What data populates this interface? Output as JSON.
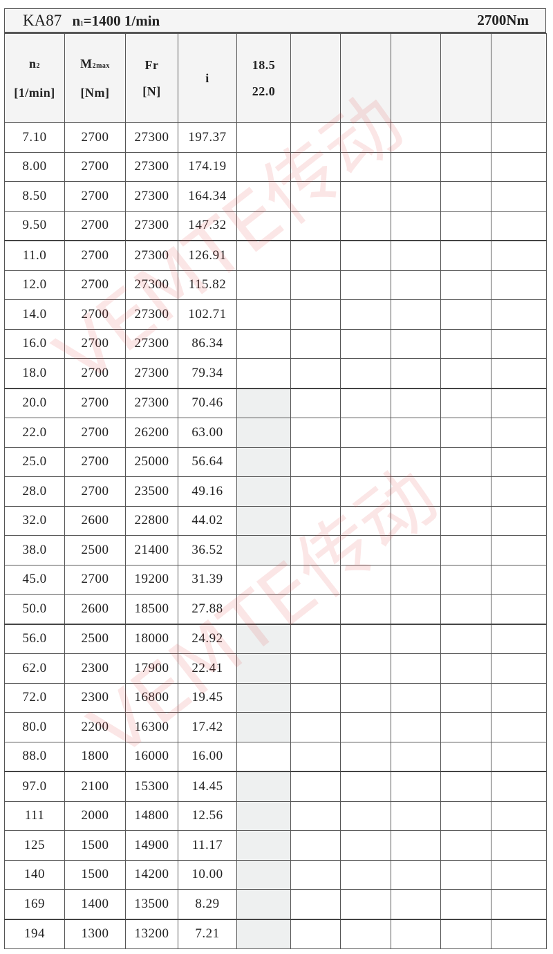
{
  "title": {
    "model": "KA87",
    "n1_label": "n",
    "n1_sub": "1",
    "n1_value": "=1400 1/min",
    "torque": "2700Nm"
  },
  "headers": {
    "n2": {
      "main": "n",
      "sub": "2",
      "unit": "[1/min]"
    },
    "m2max": {
      "main": "M",
      "sub": "2max",
      "unit": "[Nm]"
    },
    "fr": {
      "main": "Fr",
      "unit": "[N]"
    },
    "i": {
      "main": "i"
    },
    "power": {
      "line1": "18.5",
      "line2": "22.0"
    }
  },
  "rows": [
    {
      "n2": "7.10",
      "m2max": "2700",
      "fr": "27300",
      "i": "197.37",
      "shaded": false
    },
    {
      "n2": "8.00",
      "m2max": "2700",
      "fr": "27300",
      "i": "174.19",
      "shaded": false
    },
    {
      "n2": "8.50",
      "m2max": "2700",
      "fr": "27300",
      "i": "164.34",
      "shaded": false
    },
    {
      "n2": "9.50",
      "m2max": "2700",
      "fr": "27300",
      "i": "147.32",
      "shaded": false
    },
    {
      "n2": "11.0",
      "m2max": "2700",
      "fr": "27300",
      "i": "126.91",
      "shaded": false
    },
    {
      "n2": "12.0",
      "m2max": "2700",
      "fr": "27300",
      "i": "115.82",
      "shaded": false
    },
    {
      "n2": "14.0",
      "m2max": "2700",
      "fr": "27300",
      "i": "102.71",
      "shaded": false
    },
    {
      "n2": "16.0",
      "m2max": "2700",
      "fr": "27300",
      "i": "86.34",
      "shaded": false
    },
    {
      "n2": "18.0",
      "m2max": "2700",
      "fr": "27300",
      "i": "79.34",
      "shaded": false
    },
    {
      "n2": "20.0",
      "m2max": "2700",
      "fr": "27300",
      "i": "70.46",
      "shaded": true
    },
    {
      "n2": "22.0",
      "m2max": "2700",
      "fr": "26200",
      "i": "63.00",
      "shaded": true
    },
    {
      "n2": "25.0",
      "m2max": "2700",
      "fr": "25000",
      "i": "56.64",
      "shaded": true
    },
    {
      "n2": "28.0",
      "m2max": "2700",
      "fr": "23500",
      "i": "49.16",
      "shaded": true
    },
    {
      "n2": "32.0",
      "m2max": "2600",
      "fr": "22800",
      "i": "44.02",
      "shaded": true
    },
    {
      "n2": "38.0",
      "m2max": "2500",
      "fr": "21400",
      "i": "36.52",
      "shaded": true
    },
    {
      "n2": "45.0",
      "m2max": "2700",
      "fr": "19200",
      "i": "31.39",
      "shaded": false
    },
    {
      "n2": "50.0",
      "m2max": "2600",
      "fr": "18500",
      "i": "27.88",
      "shaded": false
    },
    {
      "n2": "56.0",
      "m2max": "2500",
      "fr": "18000",
      "i": "24.92",
      "shaded": true
    },
    {
      "n2": "62.0",
      "m2max": "2300",
      "fr": "17900",
      "i": "22.41",
      "shaded": true
    },
    {
      "n2": "72.0",
      "m2max": "2300",
      "fr": "16800",
      "i": "19.45",
      "shaded": true
    },
    {
      "n2": "80.0",
      "m2max": "2200",
      "fr": "16300",
      "i": "17.42",
      "shaded": true
    },
    {
      "n2": "88.0",
      "m2max": "1800",
      "fr": "16000",
      "i": "16.00",
      "shaded": false
    },
    {
      "n2": "97.0",
      "m2max": "2100",
      "fr": "15300",
      "i": "14.45",
      "shaded": true
    },
    {
      "n2": "111",
      "m2max": "2000",
      "fr": "14800",
      "i": "12.56",
      "shaded": true
    },
    {
      "n2": "125",
      "m2max": "1500",
      "fr": "14900",
      "i": "11.17",
      "shaded": true
    },
    {
      "n2": "140",
      "m2max": "1500",
      "fr": "14200",
      "i": "10.00",
      "shaded": true
    },
    {
      "n2": "169",
      "m2max": "1400",
      "fr": "13500",
      "i": "8.29",
      "shaded": true
    },
    {
      "n2": "194",
      "m2max": "1300",
      "fr": "13200",
      "i": "7.21",
      "shaded": true
    }
  ],
  "watermark": {
    "text": "VEMTE传动",
    "color": "#e23a3a"
  },
  "colors": {
    "shade": "#eef0f0",
    "border": "#555555"
  }
}
